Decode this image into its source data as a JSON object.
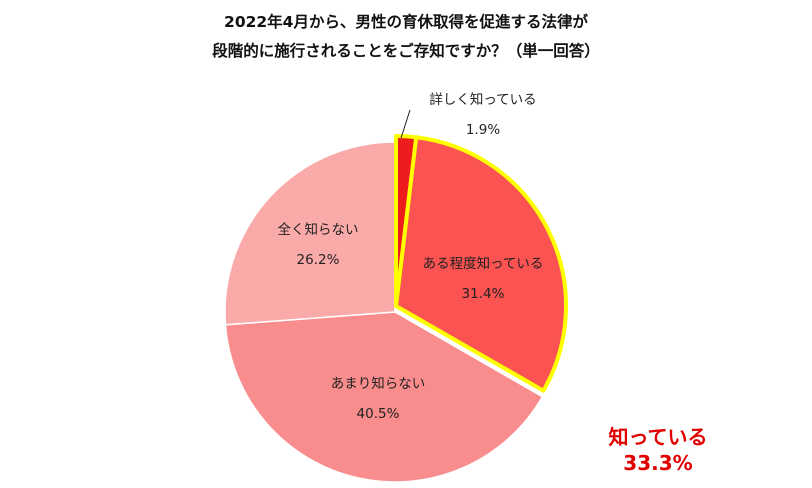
{
  "chart_data": {
    "type": "pie",
    "title": [
      "2022年4月から、男性の育休取得を促進する法律が",
      "段階的に施行されることをご存知ですか？（単一回答）"
    ],
    "slices": [
      {
        "label": "詳しく知っている",
        "value": 1.9,
        "value_label": "1.9%",
        "color": "#ee1c1c"
      },
      {
        "label": "ある程度知っている",
        "value": 31.4,
        "value_label": "31.4%",
        "color": "#fb5252"
      },
      {
        "label": "あまり知らない",
        "value": 40.5,
        "value_label": "40.5%",
        "color": "#f98c8c"
      },
      {
        "label": "全く知らない",
        "value": 26.2,
        "value_label": "26.2%",
        "color": "#fbaaaa"
      }
    ],
    "highlight": {
      "color": "#ffff00",
      "slices": [
        0,
        1
      ]
    },
    "annotation": {
      "label": "知っている",
      "value": "33.3%",
      "color": "#e00000"
    }
  }
}
